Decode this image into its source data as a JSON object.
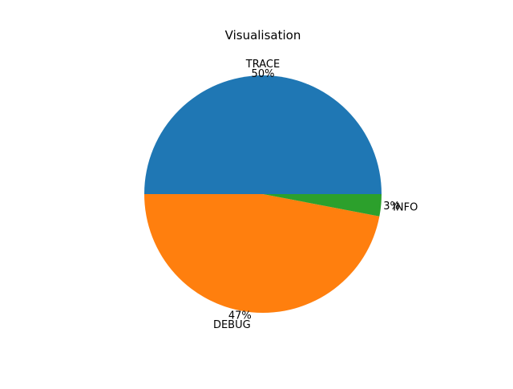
{
  "chart_data": {
    "type": "pie",
    "title": "Visualisation",
    "categories": [
      "TRACE",
      "DEBUG",
      "INFO"
    ],
    "values": [
      50,
      47,
      3
    ],
    "percent_labels": [
      "50%",
      "47%",
      "3%"
    ],
    "colors": [
      "#1f77b4",
      "#ff7f0e",
      "#2ca02c"
    ]
  }
}
